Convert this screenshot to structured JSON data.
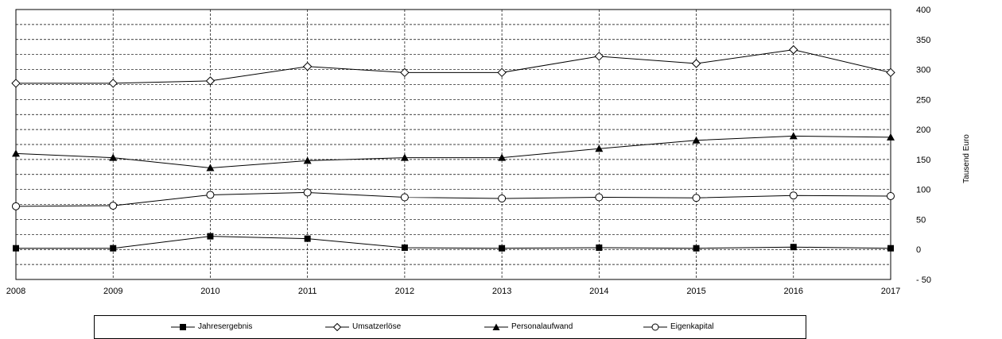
{
  "chart_data": {
    "type": "line",
    "x": [
      "2008",
      "2009",
      "2010",
      "2011",
      "2012",
      "2013",
      "2014",
      "2015",
      "2016",
      "2017"
    ],
    "series": [
      {
        "name": "Jahresergebnis",
        "marker": "square-filled",
        "values": [
          2,
          2,
          22,
          18,
          3,
          2,
          3,
          2,
          4,
          2
        ]
      },
      {
        "name": "Umsatzerlöse",
        "marker": "diamond-open",
        "values": [
          277,
          277,
          281,
          305,
          295,
          295,
          322,
          310,
          333,
          295
        ]
      },
      {
        "name": "Personalaufwand",
        "marker": "triangle-filled",
        "values": [
          160,
          153,
          136,
          148,
          153,
          153,
          168,
          182,
          189,
          187
        ]
      },
      {
        "name": "Eigenkapital",
        "marker": "circle-open",
        "values": [
          72,
          73,
          91,
          95,
          87,
          85,
          87,
          86,
          90,
          89
        ]
      }
    ],
    "y_ticks": [
      "400",
      "350",
      "300",
      "250",
      "200",
      "150",
      "100",
      "50",
      "0",
      "- 50"
    ],
    "ylim": [
      -50,
      400
    ],
    "ylabel": "Tausend Euro",
    "xlabel": "",
    "title": "",
    "grid": true,
    "legend_position": "bottom"
  }
}
